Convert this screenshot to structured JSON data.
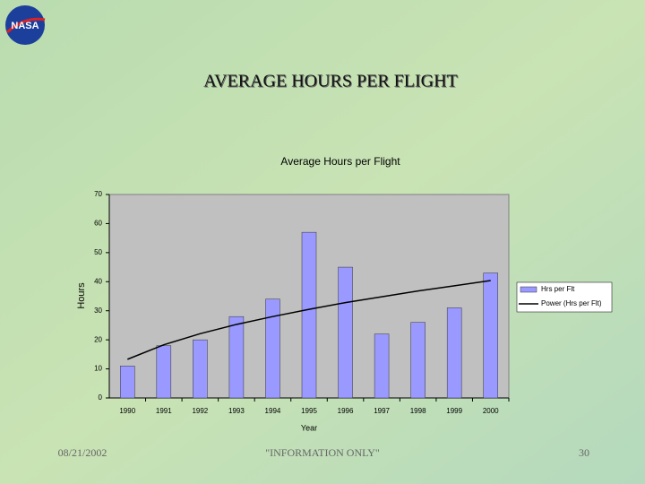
{
  "slide": {
    "logo": "NASA",
    "title": "AVERAGE HOURS PER FLIGHT",
    "date": "08/21/2002",
    "footer": "\"INFORMATION ONLY\"",
    "page": "30"
  },
  "chart_data": {
    "type": "bar",
    "title": "Average Hours per Flight",
    "x_label": "Year",
    "y_label": "Hours",
    "categories": [
      "1990",
      "1991",
      "1992",
      "1993",
      "1994",
      "1995",
      "1996",
      "1997",
      "1998",
      "1999",
      "2000"
    ],
    "series": [
      {
        "name": "Hrs per Flt",
        "type": "bar",
        "color": "#9999ff",
        "values": [
          11,
          18,
          20,
          28,
          34,
          57,
          45,
          22,
          26,
          31,
          43
        ]
      },
      {
        "name": "Power (Hrs per Flt)",
        "type": "line",
        "color": "#000000",
        "values": [
          13.3,
          18.3,
          22.1,
          25.3,
          28.0,
          30.5,
          32.8,
          34.8,
          36.8,
          38.6,
          40.4
        ]
      }
    ],
    "ylim": [
      0,
      70
    ],
    "yticks": [
      0,
      10,
      20,
      30,
      40,
      50,
      60,
      70
    ],
    "grid": false,
    "legend": "right"
  }
}
